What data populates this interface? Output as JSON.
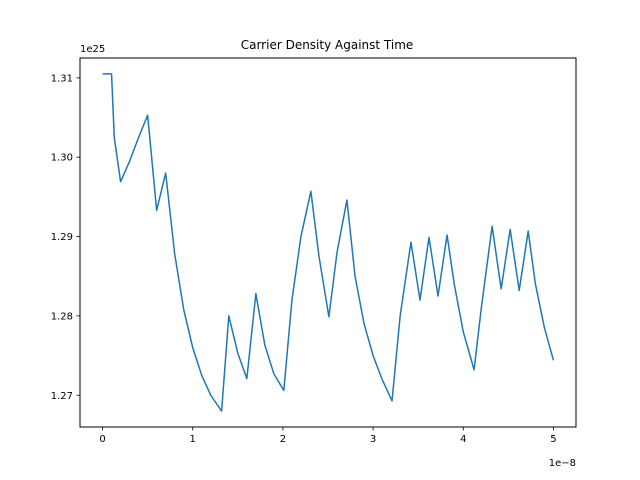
{
  "chart_data": {
    "type": "line",
    "title": "Carrier Density Against Time",
    "xlabel": "",
    "ylabel": "",
    "x_offset_text": "1e−8",
    "y_offset_text": "1e25",
    "xlim": [
      -0.25,
      5.25
    ],
    "ylim": [
      1.266,
      1.3125
    ],
    "x_ticks": [
      0,
      1,
      2,
      3,
      4,
      5
    ],
    "x_tick_labels": [
      "0",
      "1",
      "2",
      "3",
      "4",
      "5"
    ],
    "y_ticks": [
      1.27,
      1.28,
      1.29,
      1.3,
      1.31
    ],
    "y_tick_labels": [
      "1.27",
      "1.28",
      "1.29",
      "1.30",
      "1.31"
    ],
    "grid": false,
    "series": [
      {
        "color": "#1f77b4",
        "x": [
          0,
          0.1,
          0.13,
          0.2,
          0.3,
          0.4,
          0.5,
          0.6,
          0.7,
          0.8,
          0.9,
          1.0,
          1.1,
          1.2,
          1.32,
          1.4,
          1.5,
          1.6,
          1.7,
          1.8,
          1.9,
          2.01,
          2.1,
          2.2,
          2.31,
          2.4,
          2.51,
          2.6,
          2.71,
          2.8,
          2.9,
          3.0,
          3.1,
          3.21,
          3.3,
          3.42,
          3.52,
          3.62,
          3.72,
          3.82,
          3.9,
          4.0,
          4.12,
          4.2,
          4.32,
          4.42,
          4.52,
          4.62,
          4.72,
          4.8,
          4.9,
          5.0
        ],
        "y": [
          1.3105,
          1.3105,
          1.3025,
          1.2969,
          1.2995,
          1.3025,
          1.3053,
          1.2933,
          1.298,
          1.2878,
          1.2808,
          1.276,
          1.2725,
          1.27,
          1.268,
          1.28,
          1.2753,
          1.2721,
          1.2828,
          1.2763,
          1.2727,
          1.2706,
          1.282,
          1.29,
          1.2957,
          1.2875,
          1.2799,
          1.288,
          1.2946,
          1.285,
          1.279,
          1.275,
          1.272,
          1.2693,
          1.28,
          1.2893,
          1.282,
          1.2899,
          1.2825,
          1.2902,
          1.284,
          1.278,
          1.2732,
          1.281,
          1.2913,
          1.2834,
          1.2909,
          1.2832,
          1.2907,
          1.284,
          1.2785,
          1.2744
        ]
      }
    ]
  }
}
